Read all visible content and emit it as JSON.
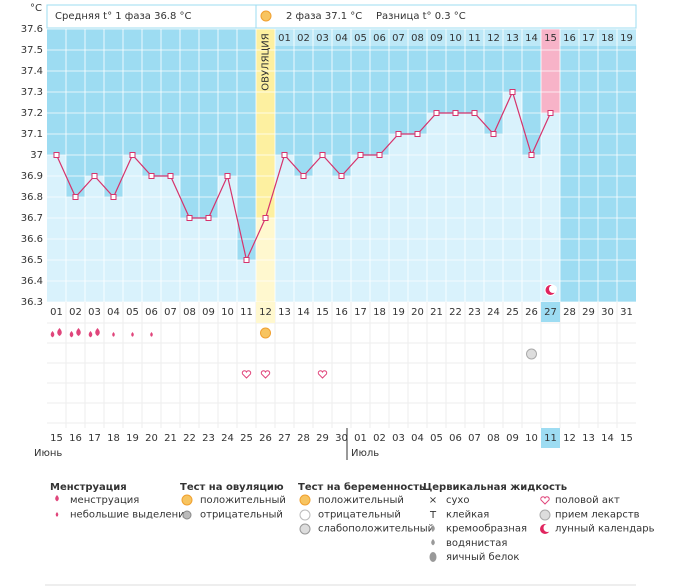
{
  "chart_data": {
    "type": "line",
    "y_unit": "°C",
    "ylim": [
      36.3,
      37.6
    ],
    "yticks": [
      36.3,
      36.4,
      36.5,
      36.6,
      36.7,
      36.8,
      36.9,
      37,
      37.1,
      37.2,
      37.3,
      37.4,
      37.5,
      37.6
    ],
    "grid": true,
    "categories": [
      "01",
      "02",
      "03",
      "04",
      "05",
      "06",
      "07",
      "08",
      "09",
      "10",
      "11",
      "12",
      "13",
      "14",
      "15",
      "16",
      "17",
      "18",
      "19",
      "20",
      "21",
      "22",
      "23",
      "24",
      "25",
      "26",
      "27",
      "28",
      "29",
      "30",
      "31"
    ],
    "series": [
      {
        "name": "t°",
        "color": "#d6336c",
        "values": [
          37,
          36.8,
          36.9,
          36.8,
          37,
          36.9,
          36.9,
          36.7,
          36.7,
          36.9,
          36.5,
          36.7,
          37,
          36.9,
          37,
          36.9,
          37,
          37,
          37.1,
          37.1,
          37.2,
          37.2,
          37.2,
          37.1,
          37.3,
          37,
          37.2,
          null,
          null,
          null,
          null
        ]
      }
    ],
    "ovulation_day": "12",
    "ovulation_label": "ОВУЛЯЦИЯ",
    "today": "27",
    "phase2_days": [
      null,
      null,
      null,
      null,
      null,
      null,
      null,
      null,
      null,
      null,
      null,
      null,
      "01",
      "02",
      "03",
      "04",
      "05",
      "06",
      "07",
      "08",
      "09",
      "10",
      "11",
      "12",
      "13",
      "14",
      "15",
      "16",
      "17",
      "18",
      "19"
    ]
  },
  "header": {
    "phase1": "Средняя t° 1 фаза 36.8 °C",
    "phase2": "2 фаза 37.1 °C",
    "diff": "Разница t° 0.3 °C"
  },
  "calendar": {
    "dates": [
      {
        "text": "15",
        "red": true
      },
      {
        "text": "16",
        "red": true
      },
      {
        "text": "17",
        "red": false
      },
      {
        "text": "18",
        "red": false
      },
      {
        "text": "19",
        "red": false
      },
      {
        "text": "20",
        "red": false
      },
      {
        "text": "21",
        "red": false
      },
      {
        "text": "22",
        "red": true
      },
      {
        "text": "23",
        "red": true
      },
      {
        "text": "24",
        "red": false
      },
      {
        "text": "25",
        "red": false
      },
      {
        "text": "26",
        "red": false
      },
      {
        "text": "27",
        "red": false
      },
      {
        "text": "28",
        "red": false
      },
      {
        "text": "29",
        "red": true
      },
      {
        "text": "30",
        "red": true
      },
      {
        "text": "01",
        "red": false
      },
      {
        "text": "02",
        "red": false
      },
      {
        "text": "03",
        "red": false
      },
      {
        "text": "04",
        "red": false
      },
      {
        "text": "05",
        "red": false
      },
      {
        "text": "06",
        "red": true
      },
      {
        "text": "07",
        "red": true
      },
      {
        "text": "08",
        "red": false
      },
      {
        "text": "09",
        "red": false
      },
      {
        "text": "10",
        "red": false
      },
      {
        "text": "11",
        "red": false
      },
      {
        "text": "12",
        "red": false
      },
      {
        "text": "13",
        "red": true
      },
      {
        "text": "14",
        "red": true
      },
      {
        "text": "15",
        "red": false
      }
    ],
    "months": [
      {
        "text": "Июнь",
        "day": "01"
      },
      {
        "text": "Июль",
        "day": "17"
      }
    ],
    "events": [
      {
        "day": "01",
        "kind": "menstruation"
      },
      {
        "day": "02",
        "kind": "menstruation"
      },
      {
        "day": "03",
        "kind": "menstruation"
      },
      {
        "day": "04",
        "kind": "spotting"
      },
      {
        "day": "05",
        "kind": "spotting"
      },
      {
        "day": "06",
        "kind": "spotting"
      },
      {
        "day": "12",
        "kind": "ovulation-positive"
      },
      {
        "day": "26",
        "kind": "medicine"
      },
      {
        "day": "11",
        "kind": "sex"
      },
      {
        "day": "12",
        "kind": "sex"
      },
      {
        "day": "15",
        "kind": "sex"
      },
      {
        "day": "27",
        "kind": "moon"
      }
    ]
  },
  "legend": {
    "groups": [
      {
        "title": "Менструация",
        "items": [
          "менструация",
          "небольшие выделения"
        ]
      },
      {
        "title": "Тест на овуляцию",
        "items": [
          "положительный",
          "отрицательный"
        ]
      },
      {
        "title": "Тест на беременность",
        "items": [
          "положительный",
          "отрицательный",
          "слабоположительный"
        ]
      },
      {
        "title": "Цервикальная жидкость",
        "items": [
          "сухо",
          "клейкая",
          "кремообразная",
          "водянистая",
          "яичный белок"
        ]
      }
    ],
    "extra": [
      "половой акт",
      "прием лекарств",
      "лунный календарь"
    ]
  }
}
